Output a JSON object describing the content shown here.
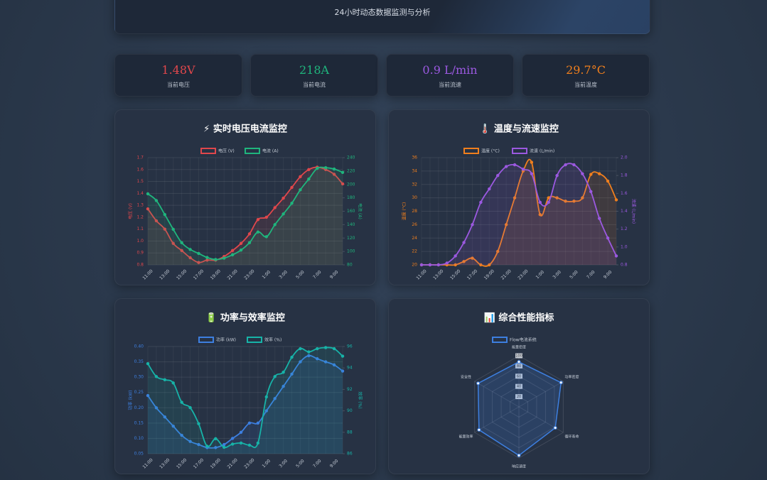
{
  "header": {
    "subtitle": "24小时动态数据监测与分析"
  },
  "stats": [
    {
      "value": "1.48V",
      "label": "当前电压"
    },
    {
      "value": "218A",
      "label": "当前电流"
    },
    {
      "value": "0.9 L/min",
      "label": "当前流速"
    },
    {
      "value": "29.7°C",
      "label": "当前温度"
    }
  ],
  "chart_data": [
    {
      "type": "line",
      "title": "⚡ 实时电压电流监控",
      "categories": [
        "11:00",
        null,
        "13:00",
        null,
        "15:00",
        null,
        "17:00",
        null,
        "19:00",
        null,
        "21:00",
        null,
        "23:00",
        null,
        "1:00",
        null,
        "3:00",
        null,
        "5:00",
        null,
        "7:00",
        null,
        "9:00",
        null
      ],
      "series": [
        {
          "name": "电压 (V)",
          "color": "#e0474c",
          "values": [
            1.27,
            1.17,
            1.1,
            0.98,
            0.92,
            0.86,
            0.82,
            0.84,
            0.84,
            0.87,
            0.92,
            0.98,
            1.06,
            1.18,
            1.2,
            1.28,
            1.36,
            1.45,
            1.54,
            1.6,
            1.62,
            1.6,
            1.56,
            1.48
          ]
        },
        {
          "name": "电流 (A)",
          "color": "#1fb57d",
          "axis": "y2",
          "values": [
            186,
            176,
            155,
            133,
            113,
            103,
            97,
            91,
            88,
            90,
            95,
            102,
            113,
            129,
            122,
            140,
            156,
            172,
            192,
            208,
            224,
            225,
            223,
            218
          ]
        }
      ],
      "ylabel": "电压 (V)",
      "y2label": "电流 (A)",
      "ylim": [
        0.8,
        1.7
      ],
      "yticks": [
        0.8,
        0.9,
        {
          "value": 1,
          "label": "1.0"
        },
        1.1,
        1.2,
        1.3,
        1.4,
        1.5,
        1.6,
        1.7
      ],
      "y2lim": [
        80,
        240
      ],
      "y2ticks": [
        80,
        100,
        120,
        140,
        160,
        180,
        200,
        220,
        240
      ],
      "grid": true
    },
    {
      "type": "line",
      "title": "🌡️ 温度与流速监控",
      "categories": [
        "11:00",
        null,
        "13:00",
        null,
        "15:00",
        null,
        "17:00",
        null,
        "19:00",
        null,
        "21:00",
        null,
        "23:00",
        null,
        "1:00",
        null,
        "3:00",
        null,
        "5:00",
        null,
        "7:00",
        null,
        "9:00",
        null
      ],
      "series": [
        {
          "name": "温度 (°C)",
          "color": "#f07f1d",
          "values": [
            20,
            20,
            20,
            20,
            20,
            20.5,
            21,
            20,
            20,
            22,
            26,
            30,
            34,
            35.3,
            27.5,
            30,
            30,
            29.5,
            29.5,
            30,
            33.5,
            33.6,
            32.5,
            29.7
          ]
        },
        {
          "name": "流速 (L/min)",
          "color": "#9b59e0",
          "axis": "y2",
          "values": [
            0.8,
            0.8,
            0.8,
            0.82,
            0.9,
            1.05,
            1.25,
            1.5,
            1.65,
            1.8,
            1.9,
            1.92,
            1.87,
            1.82,
            1.5,
            1.5,
            1.8,
            1.92,
            1.92,
            1.82,
            1.62,
            1.32,
            1.1,
            0.9
          ]
        }
      ],
      "ylabel": "温度 (°C)",
      "y2label": "流速 (L/min)",
      "ylim": [
        20,
        36
      ],
      "yticks": [
        20,
        22,
        24,
        26,
        28,
        30,
        32,
        34,
        36
      ],
      "y2lim": [
        0.8,
        2.0
      ],
      "y2ticks": [
        0.8,
        {
          "value": 1,
          "label": "1.0"
        },
        1.2,
        1.4,
        1.6,
        1.8,
        {
          "value": 2,
          "label": "2.0"
        }
      ],
      "grid": true
    },
    {
      "type": "line",
      "title": "🔋 功率与效率监控",
      "categories": [
        "11:00",
        null,
        "13:00",
        null,
        "15:00",
        null,
        "17:00",
        null,
        "19:00",
        null,
        "21:00",
        null,
        "23:00",
        null,
        "1:00",
        null,
        "3:00",
        null,
        "5:00",
        null,
        "7:00",
        null,
        "9:00",
        null
      ],
      "series": [
        {
          "name": "功率 (kW)",
          "color": "#3d7fe0",
          "values": [
            0.24,
            0.2,
            0.17,
            0.14,
            0.11,
            0.09,
            0.08,
            0.07,
            0.07,
            0.08,
            0.1,
            0.12,
            0.15,
            0.15,
            0.19,
            0.23,
            0.27,
            0.31,
            0.35,
            0.37,
            0.36,
            0.35,
            0.34,
            0.32
          ]
        },
        {
          "name": "效率 (%)",
          "color": "#17b3a8",
          "axis": "y2",
          "values": [
            94.4,
            93.2,
            92.9,
            92.6,
            90.8,
            90.3,
            88.8,
            86.7,
            87.4,
            86.6,
            86.9,
            87.0,
            86.8,
            87.0,
            91.3,
            93.2,
            93.6,
            95.0,
            95.8,
            95.5,
            95.8,
            95.9,
            95.8,
            95.1
          ]
        }
      ],
      "ylabel": "功率 (kW)",
      "y2label": "效率 (%)",
      "ylim": [
        0.05,
        0.4
      ],
      "yticks": [
        0.05,
        {
          "value": 0.1,
          "label": "0.10"
        },
        0.15,
        {
          "value": 0.2,
          "label": "0.20"
        },
        0.25,
        {
          "value": 0.3,
          "label": "0.30"
        },
        0.35,
        {
          "value": 0.4,
          "label": "0.40"
        }
      ],
      "y2lim": [
        86,
        96
      ],
      "y2ticks": [
        86,
        88,
        90,
        92,
        94,
        96
      ],
      "grid": true
    },
    {
      "type": "radar",
      "title": "📊 综合性能指标",
      "categories": [
        "能量密度",
        "功率密度",
        "循环寿命",
        "响应速度",
        "能量效率",
        "安全性"
      ],
      "series": [
        {
          "name": "Flow电池系统",
          "color": "#3d7fe0",
          "values": [
            88,
            95,
            82,
            95,
            90,
            92
          ]
        }
      ],
      "rlim": [
        0,
        100
      ],
      "rticks": [
        20,
        40,
        60,
        80,
        100
      ]
    }
  ]
}
